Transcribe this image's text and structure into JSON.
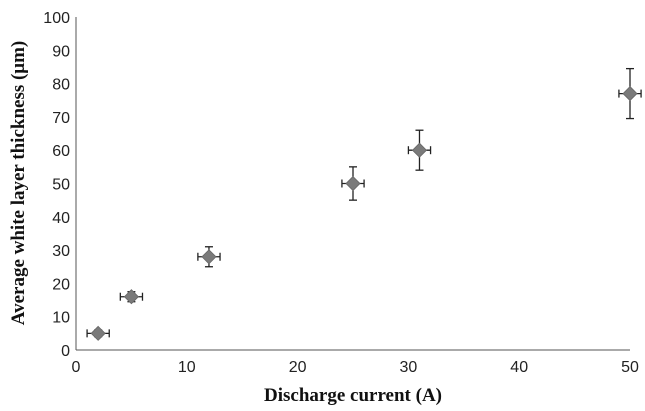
{
  "chart_data": {
    "type": "scatter",
    "title": "",
    "xlabel": "Discharge current (A)",
    "ylabel": "Average white layer thickness (μm)",
    "xlim": [
      0,
      50
    ],
    "ylim": [
      0,
      100
    ],
    "xticks": [
      "0",
      "10",
      "20",
      "30",
      "40",
      "50"
    ],
    "yticks": [
      "0",
      "10",
      "20",
      "30",
      "40",
      "50",
      "60",
      "70",
      "80",
      "90",
      "100"
    ],
    "grid": false,
    "legend": "none",
    "marker": "diamond",
    "marker_color": "#7a7a7a",
    "points": [
      {
        "x": 2,
        "y": 5,
        "x_err": 1.0,
        "y_err": 1.0
      },
      {
        "x": 5,
        "y": 16,
        "x_err": 1.0,
        "y_err": 1.5
      },
      {
        "x": 12,
        "y": 28,
        "x_err": 1.0,
        "y_err": 3.0
      },
      {
        "x": 25,
        "y": 50,
        "x_err": 1.0,
        "y_err": 5.0
      },
      {
        "x": 31,
        "y": 60,
        "x_err": 1.0,
        "y_err": 6.0
      },
      {
        "x": 50,
        "y": 77,
        "x_err": 1.0,
        "y_err": 7.5
      }
    ]
  }
}
